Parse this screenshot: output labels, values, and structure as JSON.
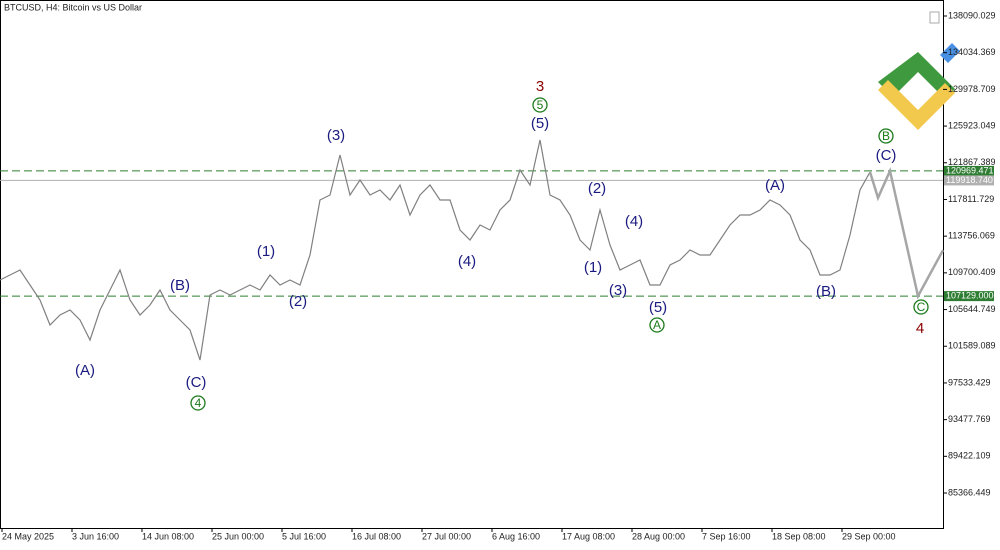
{
  "chart_data": {
    "type": "line",
    "title": "BTCUSD, H4:  Bitcoin vs US Dollar",
    "values": [
      108910,
      109463,
      110015,
      108357,
      106699,
      103936,
      105042,
      105594,
      104489,
      102278,
      105594,
      107805,
      110015,
      106699,
      105042,
      106147,
      107805,
      105594,
      104489,
      103384,
      100068,
      107252,
      107805,
      107252,
      107805,
      108357,
      107805,
      109463,
      108357,
      108910,
      108357,
      111673,
      117752,
      118305,
      122726,
      118305,
      119963,
      118305,
      118858,
      117752,
      119410,
      116095,
      118305,
      119410,
      117752,
      117752,
      114437,
      113331,
      114989,
      114437,
      116647,
      117752,
      121068,
      119410,
      124384,
      118305,
      117752,
      116095,
      113331,
      112226,
      116647,
      112779,
      110015,
      110568,
      111121,
      108357,
      108357,
      110568,
      111121,
      112226,
      111673,
      111673,
      113331,
      114989,
      116095,
      116095,
      116647,
      117752,
      117200,
      116095,
      113331,
      112226,
      109463,
      109463,
      110015,
      113884,
      118858,
      120847
    ],
    "color": "#808080",
    "forecast": {
      "values": [
        120847,
        118000,
        120969,
        107129,
        112200
      ],
      "color": "#a6a6a6"
    },
    "ylim": [
      81499,
      139858
    ],
    "yticks": [
      138090.029,
      134034.369,
      129978.709,
      125923.049,
      121867.389,
      117811.729,
      113756.069,
      109700.409,
      105644.749,
      101589.089,
      97533.429,
      93477.769,
      89422.109,
      85366.449
    ],
    "levels": [
      {
        "value": 120969.471,
        "color": "#2e7d32",
        "dashed": true
      },
      {
        "value": 119918.74,
        "label": "119918.740",
        "color": "#b0b0b0",
        "dashed": false
      },
      {
        "value": 107129,
        "label": "107129.000",
        "color": "#2e7d32",
        "dashed": true
      }
    ],
    "x_labels": [
      "24 May 2025",
      "3 Jun 16:00",
      "14 Jun 08:00",
      "25 Jun 00:00",
      "5 Jul 16:00",
      "16 Jul 08:00",
      "27 Jul 00:00",
      "6 Aug 16:00",
      "17 Aug 08:00",
      "28 Aug 00:00",
      "7 Sep 16:00",
      "18 Sep 08:00",
      "29 Sep 00:00"
    ],
    "annotations": [
      {
        "text": "(A)",
        "color": "#1a1a80",
        "circled": false
      },
      {
        "text": "(B)",
        "color": "#1a1a80",
        "circled": false
      },
      {
        "text": "(C)",
        "color": "#1a1a80",
        "circled": false
      },
      {
        "text": "4",
        "color": "#1b7a1b",
        "circled": true
      },
      {
        "text": "(1)",
        "color": "#1a1a80",
        "circled": false
      },
      {
        "text": "(2)",
        "color": "#1a1a80",
        "circled": false
      },
      {
        "text": "(3)",
        "color": "#1a1a80",
        "circled": false
      },
      {
        "text": "(4)",
        "color": "#1a1a80",
        "circled": false
      },
      {
        "text": "(5)",
        "color": "#1a1a80",
        "circled": false
      },
      {
        "text": "5",
        "color": "#1b7a1b",
        "circled": true
      },
      {
        "text": "3",
        "color": "#8b0000",
        "circled": false
      },
      {
        "text": "(2)",
        "color": "#1a1a80",
        "circled": false
      },
      {
        "text": "(4)",
        "color": "#1a1a80",
        "circled": false
      },
      {
        "text": "(1)",
        "color": "#1a1a80",
        "circled": false
      },
      {
        "text": "(3)",
        "color": "#1a1a80",
        "circled": false
      },
      {
        "text": "(5)",
        "color": "#1a1a80",
        "circled": false
      },
      {
        "text": "A",
        "color": "#1b7a1b",
        "circled": true
      },
      {
        "text": "(A)",
        "color": "#1a1a80",
        "circled": false
      },
      {
        "text": "(B)",
        "color": "#1a1a80",
        "circled": false
      },
      {
        "text": "(C)",
        "color": "#1a1a80",
        "circled": false
      },
      {
        "text": "B",
        "color": "#1b7a1b",
        "circled": true
      },
      {
        "text": "C",
        "color": "#1b7a1b",
        "circled": true
      },
      {
        "text": "4",
        "color": "#8b0000",
        "circled": false
      }
    ]
  }
}
